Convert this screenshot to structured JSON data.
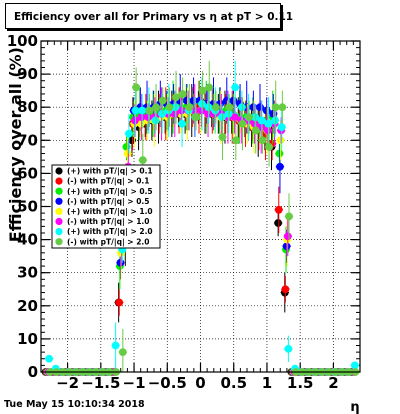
{
  "title": "Efficiency over all for Primary vs  η at pT > 0.11",
  "footer_date": "Tue May 15 10:10:34 2018",
  "chart_data": {
    "type": "scatter",
    "title": "Efficiency over all for Primary vs  η at pT > 0.11",
    "xlabel": "η",
    "ylabel": "Efficiency over all (%)",
    "xlim": [
      -2.4,
      2.4
    ],
    "ylim": [
      0,
      100
    ],
    "xticks": [
      -2,
      -1.5,
      -1,
      -0.5,
      0,
      0.5,
      1,
      1.5,
      2
    ],
    "xtick_labels": [
      "−2",
      "−1.5",
      "−1",
      "−0.5",
      "0",
      "0.5",
      "1",
      "1.5",
      "2"
    ],
    "yticks": [
      0,
      10,
      20,
      30,
      40,
      50,
      60,
      70,
      80,
      90,
      100
    ],
    "grid": true,
    "legend_position": "center-left",
    "x": [
      -2.3,
      -2.2,
      -2.1,
      -2.0,
      -1.9,
      -1.8,
      -1.7,
      -1.6,
      -1.5,
      -1.4,
      -1.3,
      -1.2,
      -1.1,
      -1.0,
      -0.9,
      -0.8,
      -0.7,
      -0.6,
      -0.5,
      -0.4,
      -0.3,
      -0.2,
      -0.1,
      0.0,
      0.1,
      0.2,
      0.3,
      0.4,
      0.5,
      0.6,
      0.7,
      0.8,
      0.9,
      1.0,
      1.1,
      1.2,
      1.3,
      1.4,
      1.5,
      1.6,
      1.7,
      1.8,
      1.9,
      2.0,
      2.1,
      2.2,
      2.3
    ],
    "series": [
      {
        "name": "(+) with pT/|q| > 0.1",
        "color": "#000000",
        "values": [
          0,
          0,
          0,
          0,
          0,
          0,
          0,
          0,
          0,
          0,
          0,
          21,
          40,
          70,
          74,
          75,
          76,
          77,
          77,
          78,
          78,
          78,
          79,
          80,
          79,
          78,
          78,
          77,
          77,
          76,
          75,
          74,
          73,
          72,
          68,
          45,
          24,
          0,
          0,
          0,
          0,
          0,
          0,
          0,
          0,
          0,
          0
        ]
      },
      {
        "name": "(-) with pT/|q| > 0.1",
        "color": "#ff0000",
        "values": [
          0,
          0,
          0,
          0,
          0,
          0,
          0,
          0,
          0,
          0,
          0,
          21,
          57,
          75,
          76,
          77,
          77,
          78,
          78,
          79,
          79,
          79,
          80,
          80,
          79,
          79,
          78,
          78,
          77,
          76,
          75,
          74,
          73,
          72,
          69,
          49,
          25,
          0,
          0,
          0,
          0,
          0,
          0,
          0,
          0,
          0,
          0
        ]
      },
      {
        "name": "(+) with pT/|q| > 0.5",
        "color": "#00ee00",
        "values": [
          0,
          0,
          0,
          0,
          0,
          0,
          0,
          0,
          0,
          0,
          0,
          32,
          68,
          77,
          78,
          77,
          78,
          79,
          79,
          80,
          80,
          80,
          81,
          82,
          80,
          80,
          79,
          79,
          78,
          77,
          77,
          76,
          75,
          74,
          77,
          66,
          37,
          0,
          0,
          0,
          0,
          0,
          0,
          0,
          0,
          0,
          0
        ]
      },
      {
        "name": "(-) with pT/|q| > 0.5",
        "color": "#0000ff",
        "values": [
          0,
          0,
          0,
          0,
          0,
          0,
          0,
          0,
          0,
          0,
          0,
          33,
          55,
          79,
          80,
          80,
          80,
          81,
          81,
          81,
          82,
          82,
          82,
          82,
          81,
          81,
          81,
          82,
          82,
          81,
          80,
          80,
          80,
          79,
          78,
          62,
          38,
          0,
          0,
          0,
          0,
          0,
          0,
          0,
          0,
          0,
          0
        ]
      },
      {
        "name": "(+) with pT/|q| > 1.0",
        "color": "#ffff00",
        "values": [
          0,
          0,
          0,
          0,
          0,
          0,
          0,
          0,
          0,
          0,
          0,
          36,
          66,
          75,
          75,
          76,
          76,
          77,
          77,
          78,
          78,
          78,
          79,
          79,
          78,
          78,
          77,
          77,
          77,
          76,
          75,
          74,
          74,
          73,
          75,
          70,
          40,
          0,
          0,
          0,
          0,
          0,
          0,
          0,
          0,
          0,
          0
        ]
      },
      {
        "name": "(-) with pT/|q| > 1.0",
        "color": "#ff00ff",
        "values": [
          0,
          0,
          0,
          0,
          0,
          0,
          0,
          0,
          0,
          0,
          0,
          38,
          62,
          76,
          77,
          77,
          77,
          78,
          78,
          78,
          79,
          79,
          79,
          79,
          78,
          78,
          78,
          77,
          77,
          76,
          76,
          75,
          74,
          73,
          75,
          73,
          41,
          0,
          0,
          0,
          0,
          0,
          0,
          0,
          0,
          0,
          0
        ]
      },
      {
        "name": "(+) with pT/|q| > 2.0",
        "color": "#00ffff",
        "values": [
          4,
          1,
          0,
          0,
          0,
          0,
          0,
          0,
          0,
          0,
          8,
          37,
          72,
          79,
          79,
          79,
          76,
          78,
          79,
          80,
          75,
          79,
          77,
          81,
          80,
          79,
          77,
          78,
          86,
          80,
          77,
          77,
          76,
          75,
          76,
          74,
          7,
          1,
          0,
          0,
          0,
          0,
          0,
          0,
          0,
          0,
          2
        ]
      },
      {
        "name": "(-) with pT/|q| > 2.0",
        "color": "#66cc44",
        "values": [
          0,
          0,
          0,
          0,
          0,
          0,
          0,
          0,
          0,
          0,
          0,
          6,
          57,
          86,
          64,
          79,
          80,
          82,
          80,
          83,
          84,
          80,
          77,
          85,
          86,
          80,
          71,
          80,
          70,
          75,
          77,
          73,
          70,
          68,
          80,
          80,
          47,
          0,
          0,
          0,
          0,
          0,
          0,
          0,
          0,
          0,
          0
        ]
      }
    ]
  }
}
